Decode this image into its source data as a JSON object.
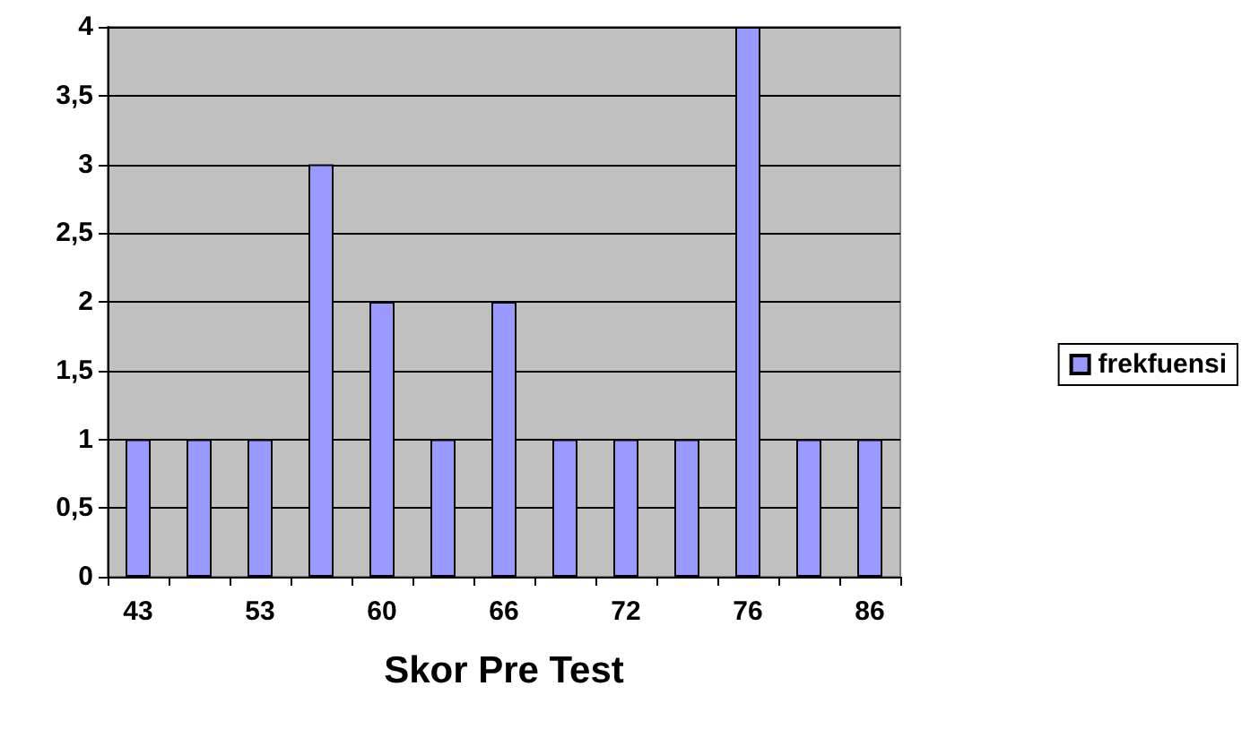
{
  "chart_data": {
    "type": "bar",
    "xlabel": "Skor Pre Test",
    "categories": [
      "43",
      null,
      "53",
      null,
      "60",
      null,
      "66",
      null,
      "72",
      null,
      "76",
      null,
      "86"
    ],
    "series": [
      {
        "name": "frekfuensi",
        "color": "#9999ff",
        "values": [
          1,
          1,
          1,
          3,
          2,
          1,
          2,
          1,
          1,
          1,
          4,
          1,
          1
        ]
      }
    ],
    "ylim": [
      0,
      4
    ],
    "yticks": [
      0,
      {
        "value": 0.5,
        "label": "0,5"
      },
      1,
      {
        "value": 1.5,
        "label": "1,5"
      },
      2,
      {
        "value": 2.5,
        "label": "2,5"
      },
      3,
      {
        "value": 3.5,
        "label": "3,5"
      },
      4
    ],
    "grid": "y",
    "legend": "right"
  }
}
